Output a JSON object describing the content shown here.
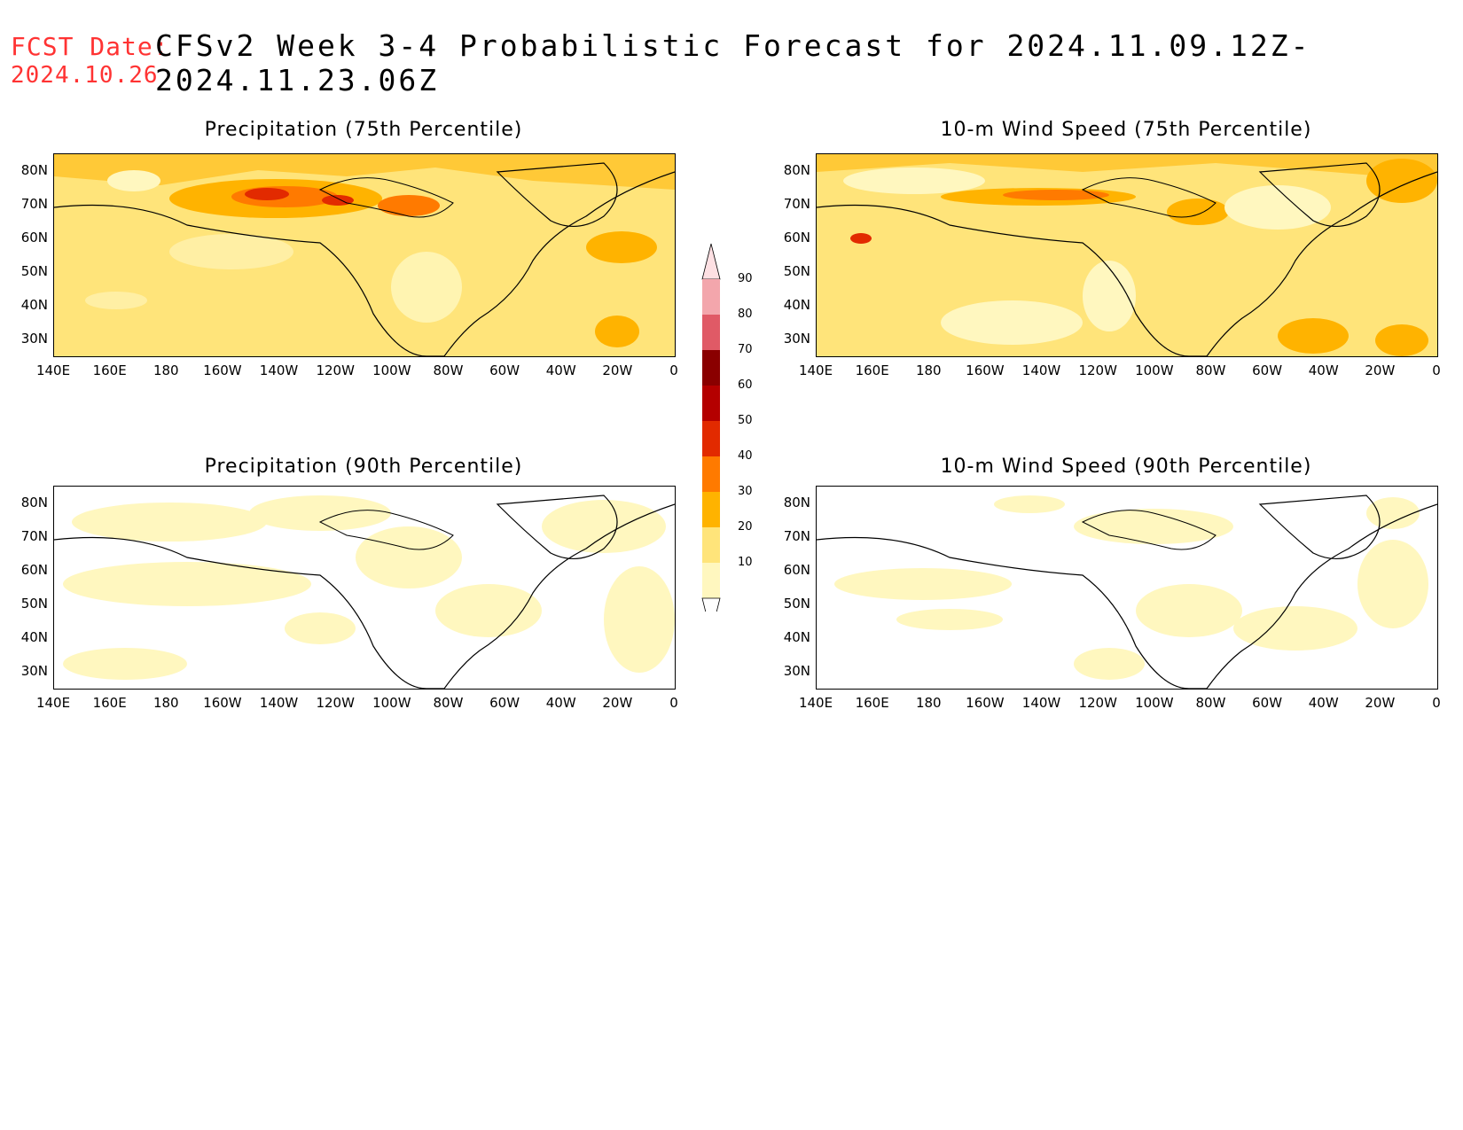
{
  "header": {
    "fcst_label": "FCST Date:",
    "title": "CFSv2 Week 3-4 Probabilistic Forecast for 2024.11.09.12Z-2024.11.23.06Z",
    "fcst_date": "2024.10.26"
  },
  "lat_labels": [
    "80N",
    "70N",
    "60N",
    "50N",
    "40N",
    "30N"
  ],
  "lon_labels": [
    "140E",
    "160E",
    "180",
    "160W",
    "140W",
    "120W",
    "100W",
    "80W",
    "60W",
    "40W",
    "20W",
    "0"
  ],
  "panels": [
    {
      "title": "Precipitation (75th Percentile)",
      "level": "high"
    },
    {
      "title": "10-m Wind Speed (75th Percentile)",
      "level": "high"
    },
    {
      "title": "Precipitation (90th Percentile)",
      "level": "low"
    },
    {
      "title": "10-m Wind Speed (90th Percentile)",
      "level": "low"
    }
  ],
  "colorbar": {
    "labels": [
      "90",
      "80",
      "70",
      "60",
      "50",
      "40",
      "30",
      "20",
      "10"
    ],
    "colors": {
      "10": "#fff7bf",
      "20": "#ffe47a",
      "30": "#ffb300",
      "40": "#ff7a00",
      "50": "#e22a00",
      "60": "#b40000",
      "70": "#8a0000",
      "80": "#e05a66",
      "90": "#f3a6ac"
    }
  }
}
